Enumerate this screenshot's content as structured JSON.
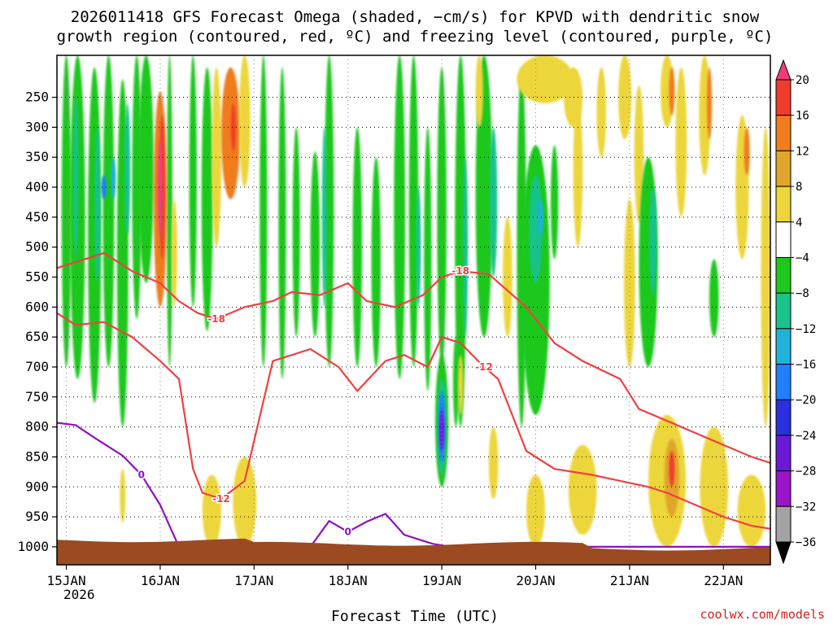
{
  "chart_data": {
    "type": "heatmap",
    "title_line1": "2026011418 GFS Forecast Omega (shaded, −cm/s) for KPVD with dendritic snow",
    "title_line2": "growth region (contoured, red, ºC) and freezing level (contoured, purple, ºC)",
    "xlabel": "Forecast Time (UTC)",
    "x_tick_labels": [
      "15JAN",
      "16JAN",
      "17JAN",
      "18JAN",
      "19JAN",
      "20JAN",
      "21JAN",
      "22JAN"
    ],
    "x_tick_sub": "2026",
    "x_range_days": [
      -0.1,
      7.5
    ],
    "y_tick_labels": [
      "250",
      "300",
      "350",
      "400",
      "450",
      "500",
      "550",
      "600",
      "650",
      "700",
      "750",
      "800",
      "850",
      "900",
      "950",
      "1000"
    ],
    "y_values_hpa": [
      250,
      300,
      350,
      400,
      450,
      500,
      550,
      600,
      650,
      700,
      750,
      800,
      850,
      900,
      950,
      1000
    ],
    "y_range_hpa": [
      180,
      1030
    ],
    "colorbar": {
      "labels": [
        "20",
        "16",
        "12",
        "8",
        "4",
        "−4",
        "−8",
        "−12",
        "−16",
        "−20",
        "−24",
        "−28",
        "−32",
        "−36"
      ],
      "colors": [
        "#f03d7a",
        "#f03c2c",
        "#f07c1e",
        "#e0a62c",
        "#ecd63a",
        "#ffffff",
        "#1ec81e",
        "#19c38a",
        "#1fb3d8",
        "#1f7fff",
        "#2a30e0",
        "#6a1ad6",
        "#9c14c8",
        "#a3a3a3",
        "#000000"
      ]
    },
    "series": [
      {
        "name": "Dendritic snow growth region lower bound",
        "color": "#f04040",
        "contour_value": "-12",
        "label_text": "-12",
        "x": [
          -0.1,
          0.1,
          0.4,
          0.7,
          1.0,
          1.2,
          1.35,
          1.45,
          1.65,
          1.9,
          2.2,
          2.6,
          2.9,
          3.1,
          3.4,
          3.6,
          3.85,
          4.0,
          4.2,
          4.45,
          4.6,
          4.7,
          4.9,
          5.2,
          5.6,
          5.9,
          6.2,
          6.4,
          6.7,
          7.0,
          7.3,
          7.5
        ],
        "y": [
          610,
          630,
          625,
          650,
          690,
          720,
          870,
          910,
          920,
          890,
          690,
          670,
          700,
          740,
          690,
          680,
          700,
          650,
          660,
          700,
          720,
          760,
          840,
          870,
          880,
          890,
          900,
          910,
          930,
          950,
          965,
          970
        ]
      },
      {
        "name": "Dendritic snow growth region upper bound",
        "color": "#f04040",
        "contour_value": "-18",
        "label_text": "-18",
        "x": [
          -0.1,
          0.2,
          0.4,
          0.7,
          1.0,
          1.2,
          1.4,
          1.6,
          1.9,
          2.2,
          2.4,
          2.7,
          3.0,
          3.2,
          3.5,
          3.8,
          4.0,
          4.2,
          4.5,
          4.9,
          5.2,
          5.5,
          5.9,
          6.1,
          6.4,
          6.7,
          7.0,
          7.3,
          7.5
        ],
        "y": [
          535,
          520,
          510,
          540,
          560,
          590,
          610,
          620,
          600,
          590,
          575,
          580,
          560,
          590,
          600,
          580,
          550,
          540,
          545,
          600,
          660,
          690,
          720,
          770,
          790,
          810,
          830,
          850,
          860
        ]
      },
      {
        "name": "Freezing level",
        "color": "#9010c0",
        "contour_value": "0",
        "label_text": "0",
        "x": [
          -0.1,
          0.1,
          0.3,
          0.6,
          0.8,
          1.0,
          1.2,
          2.1,
          2.6,
          2.8,
          3.0,
          3.2,
          3.4,
          3.6,
          3.9,
          4.1,
          4.3,
          7.5
        ],
        "y": [
          793,
          797,
          818,
          848,
          880,
          930,
          1000,
          1000,
          1000,
          957,
          975,
          958,
          945,
          980,
          995,
          1000,
          1000,
          1000
        ]
      }
    ]
  },
  "credit": "coolwx.com/models"
}
